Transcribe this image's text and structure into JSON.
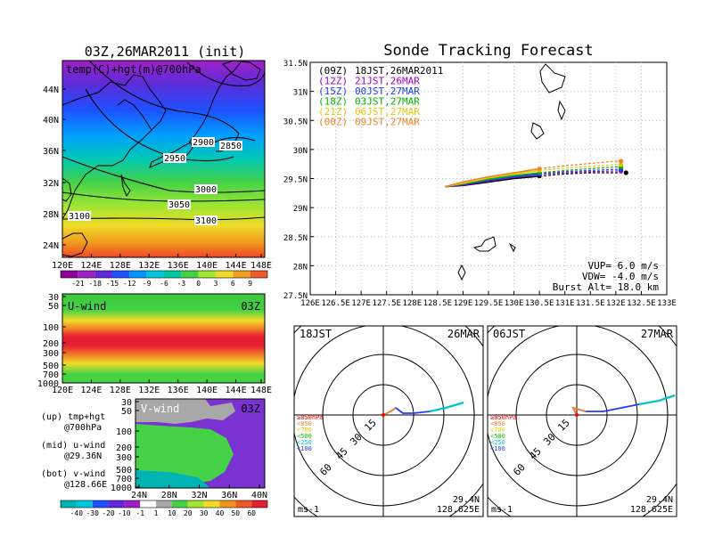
{
  "map_panel": {
    "title": "03Z,26MAR2011 (init)",
    "label": "temp(C)+hgt(m)@700hPa",
    "lat_ticks": [
      "44N",
      "40N",
      "36N",
      "32N",
      "28N",
      "24N"
    ],
    "lon_ticks": [
      "120E",
      "124E",
      "128E",
      "132E",
      "136E",
      "140E",
      "144E",
      "148E"
    ],
    "contour_labels": [
      "2900",
      "2850",
      "2950",
      "3000",
      "3050",
      "3100",
      "3100"
    ],
    "colorbar_labels": [
      "-21",
      "-18",
      "-15",
      "-12",
      "-9",
      "-6",
      "-3",
      "0",
      "3",
      "6",
      "9"
    ]
  },
  "uwind_panel": {
    "label": "U-wind",
    "time": "03Z",
    "p_ticks": [
      "30",
      "50",
      "100",
      "200",
      "300",
      "500",
      "700",
      "1000"
    ],
    "lon_ticks": [
      "120E",
      "124E",
      "128E",
      "132E",
      "136E",
      "140E",
      "144E",
      "148E"
    ]
  },
  "vwind_panel": {
    "label": "V-wind",
    "time": "03Z",
    "p_ticks": [
      "30",
      "50",
      "100",
      "200",
      "300",
      "500",
      "700",
      "1000"
    ],
    "lat_ticks": [
      "24N",
      "28N",
      "32N",
      "36N",
      "40N"
    ],
    "colorbar_labels": [
      "-40",
      "-30",
      "-20",
      "-10",
      "-1",
      "1",
      "10",
      "20",
      "30",
      "40",
      "50",
      "60"
    ]
  },
  "panel_notes": [
    {
      "line1": "(up) tmp+hgt",
      "line2": "@700hPa"
    },
    {
      "line1": "(mid) u-wind",
      "line2": "@29.36N"
    },
    {
      "line1": "(bot) v-wind",
      "line2": "@128.66E"
    }
  ],
  "track_panel": {
    "title": "Sonde Tracking Forecast",
    "lat_ticks": [
      "31.5N",
      "31N",
      "30.5N",
      "30N",
      "29.5N",
      "29N",
      "28.5N",
      "28N",
      "27.5N"
    ],
    "lon_ticks": [
      "126E",
      "126.5E",
      "127E",
      "127.5E",
      "128E",
      "128.5E",
      "129E",
      "129.5E",
      "130E",
      "130.5E",
      "131E",
      "131.5E",
      "132E",
      "132.5E",
      "133E"
    ],
    "legend": [
      {
        "label": "(09Z)",
        "time": "18JST,26MAR2011",
        "color": "#000000"
      },
      {
        "label": "(12Z)",
        "time": "21JST,26MAR",
        "color": "#a000c8"
      },
      {
        "label": "(15Z)",
        "time": "00JST,27MAR",
        "color": "#1e3cff"
      },
      {
        "label": "(18Z)",
        "time": "03JST,27MAR",
        "color": "#00b400"
      },
      {
        "label": "(21Z)",
        "time": "06JST,27MAR",
        "color": "#e6c800"
      },
      {
        "label": "(00Z)",
        "time": "09JST,27MAR",
        "color": "#f08228"
      }
    ],
    "params": [
      "VUP= 6.0 m/s",
      "VDW= -4.0 m/s",
      "Burst Alt= 18.0 km"
    ]
  },
  "hodographs": [
    {
      "time": "18JST",
      "date": "26MAR",
      "lat": "29.4N",
      "lon": "128.625E",
      "unit": "ms-1"
    },
    {
      "time": "06JST",
      "date": "27MAR",
      "lat": "29.4N",
      "lon": "128.625E",
      "unit": "ms-1"
    }
  ],
  "hodo_ring_labels": [
    "15",
    "30",
    "45",
    "60"
  ],
  "hodo_levels": [
    {
      "label": "≥850hPa",
      "color": "#ff0000"
    },
    {
      "label": "<850",
      "color": "#f08228"
    },
    {
      "label": "<700",
      "color": "#e6c800"
    },
    {
      "label": "<500",
      "color": "#00c800"
    },
    {
      "label": "<250",
      "color": "#00c8c8"
    },
    {
      "label": "<100",
      "color": "#1e3cff"
    }
  ],
  "chart_data": {
    "type": "line",
    "title": "Sonde Tracking Forecast",
    "xlim": [
      126,
      133
    ],
    "ylim": [
      27.5,
      31.5
    ],
    "series": [
      {
        "name": "(09Z)",
        "x": [
          128.65,
          129.0,
          129.5,
          130.0,
          130.5,
          131.0,
          131.5,
          132.0,
          132.2
        ],
        "y": [
          29.36,
          29.38,
          29.44,
          29.5,
          29.54,
          29.58,
          29.6,
          29.6,
          29.6
        ]
      },
      {
        "name": "(12Z)",
        "x": [
          128.65,
          129.0,
          129.5,
          130.0,
          130.5,
          131.0,
          131.5,
          132.0,
          132.1
        ],
        "y": [
          29.36,
          29.39,
          29.46,
          29.52,
          29.57,
          29.6,
          29.62,
          29.63,
          29.63
        ]
      },
      {
        "name": "(15Z)",
        "x": [
          128.65,
          129.0,
          129.5,
          130.0,
          130.5,
          131.0,
          131.5,
          132.0,
          132.1
        ],
        "y": [
          29.36,
          29.4,
          29.47,
          29.53,
          29.58,
          29.62,
          29.64,
          29.66,
          29.66
        ]
      },
      {
        "name": "(18Z)",
        "x": [
          128.65,
          129.0,
          129.5,
          130.0,
          130.5,
          131.0,
          131.5,
          132.0,
          132.1
        ],
        "y": [
          29.36,
          29.41,
          29.49,
          29.55,
          29.6,
          29.64,
          29.67,
          29.7,
          29.7
        ]
      },
      {
        "name": "(21Z)",
        "x": [
          128.65,
          129.0,
          129.5,
          130.0,
          130.5,
          131.0,
          131.5,
          132.0,
          132.1
        ],
        "y": [
          29.36,
          29.42,
          29.51,
          29.58,
          29.64,
          29.68,
          29.71,
          29.74,
          29.74
        ]
      },
      {
        "name": "(00Z)",
        "x": [
          128.65,
          129.0,
          129.5,
          130.0,
          130.5,
          131.0,
          131.5,
          132.0,
          132.1
        ],
        "y": [
          29.36,
          29.44,
          29.53,
          29.6,
          29.67,
          29.72,
          29.76,
          29.8,
          29.8
        ]
      }
    ]
  }
}
